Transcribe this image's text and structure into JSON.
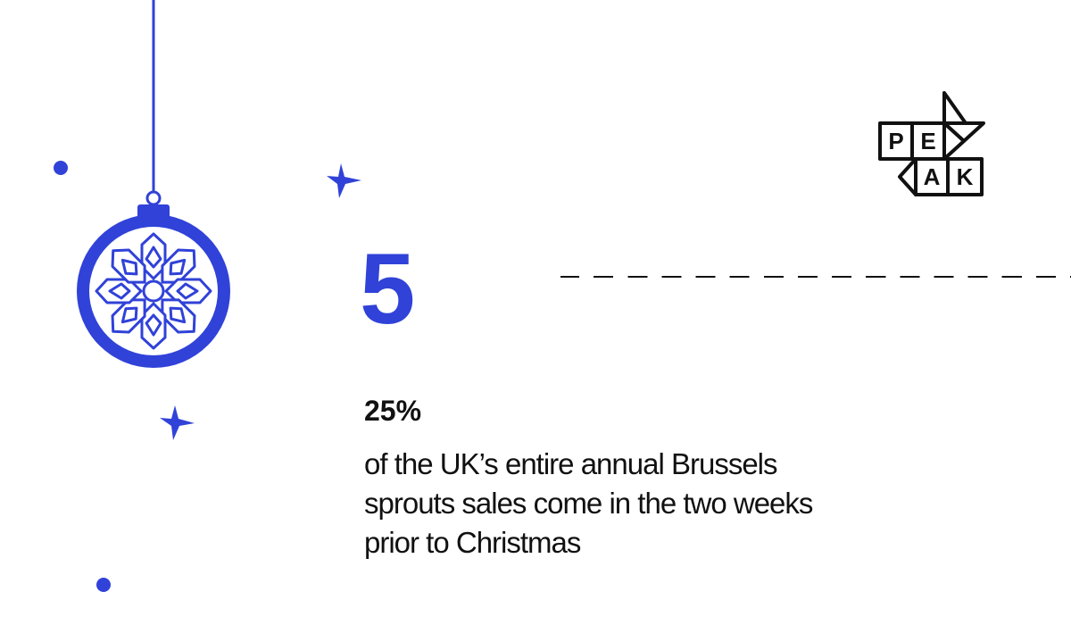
{
  "colors": {
    "accent": "#3042d8",
    "text": "#111111",
    "background": "#ffffff"
  },
  "fact": {
    "number": "5",
    "stat_value": "25%",
    "description": "of the UK’s entire annual Brussels sprouts sales come in the two weeks prior to Christmas"
  },
  "logo": {
    "letters": [
      "P",
      "E",
      "A",
      "K"
    ]
  },
  "icons": [
    "bauble-icon",
    "snowflake-icon",
    "star-icon",
    "dot-icon"
  ]
}
